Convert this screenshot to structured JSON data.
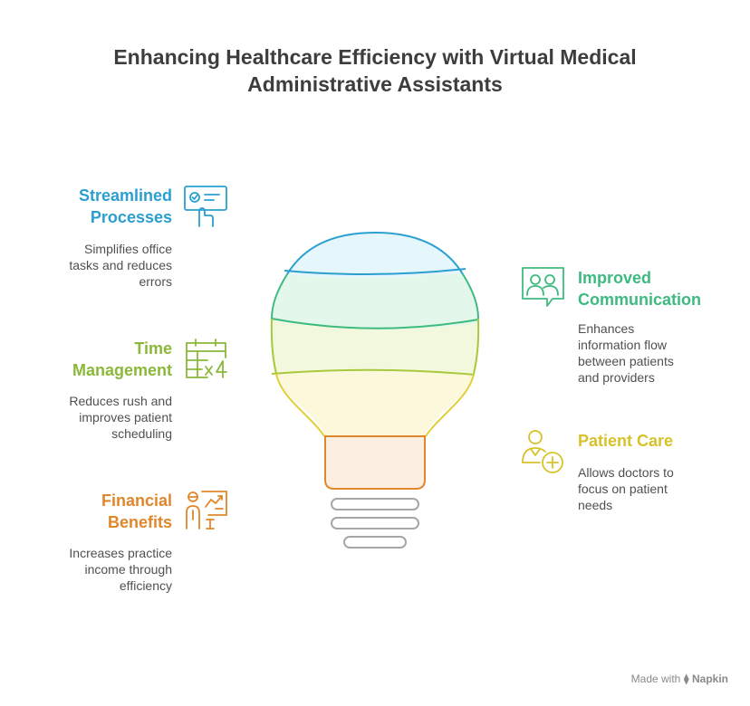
{
  "title": {
    "line1": "Enhancing Healthcare Efficiency with Virtual Medical",
    "line2": "Administrative Assistants"
  },
  "items": {
    "streamlined": {
      "heading": [
        "Streamlined",
        "Processes"
      ],
      "desc": [
        "Simplifies office",
        "tasks and reduces",
        "errors"
      ],
      "color": "#2a9fd0",
      "icon": "checklist-hand-icon"
    },
    "time": {
      "heading": [
        "Time",
        "Management"
      ],
      "desc": [
        "Reduces rush and",
        "improves patient",
        "scheduling"
      ],
      "color": "#8bb83a",
      "icon": "calendar-x4-icon"
    },
    "financial": {
      "heading": [
        "Financial",
        "Benefits"
      ],
      "desc": [
        "Increases practice",
        "income through",
        "efficiency"
      ],
      "color": "#e0872b",
      "icon": "presenter-chart-icon"
    },
    "communication": {
      "heading": [
        "Improved",
        "Communication"
      ],
      "desc": [
        "Enhances",
        "information flow",
        "between patients",
        "and providers"
      ],
      "color": "#3dbb7e",
      "icon": "people-chat-icon"
    },
    "patient": {
      "heading": [
        "Patient Care"
      ],
      "desc": [
        "Allows doctors to",
        "focus on patient",
        "needs"
      ],
      "color": "#d8c22a",
      "icon": "doctor-plus-icon"
    }
  },
  "footer": {
    "made_with": "Made with",
    "brand": "Napkin"
  }
}
